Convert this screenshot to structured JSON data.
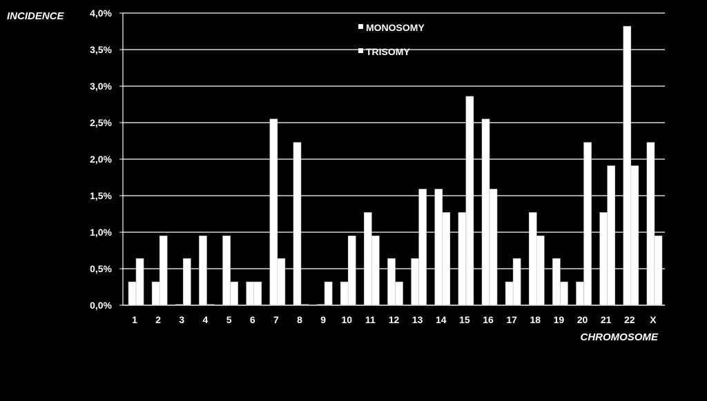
{
  "chart_data": {
    "type": "bar",
    "ylabel": "INCIDENCE",
    "xlabel": "CHROMOSOME",
    "categories": [
      "1",
      "2",
      "3",
      "4",
      "5",
      "6",
      "7",
      "8",
      "9",
      "10",
      "11",
      "12",
      "13",
      "14",
      "15",
      "16",
      "17",
      "18",
      "19",
      "20",
      "21",
      "22",
      "X"
    ],
    "series": [
      {
        "name": "MONOSOMY",
        "values": [
          0.32,
          0.32,
          0.0,
          0.95,
          0.95,
          0.32,
          2.55,
          2.23,
          0.0,
          0.32,
          1.27,
          0.64,
          0.64,
          1.59,
          1.27,
          2.55,
          0.32,
          1.27,
          0.64,
          0.32,
          1.27,
          3.82,
          2.23
        ]
      },
      {
        "name": "TRISOMY",
        "values": [
          0.64,
          0.95,
          0.64,
          0.0,
          0.32,
          0.32,
          0.64,
          0.0,
          0.32,
          0.95,
          0.95,
          0.32,
          1.59,
          1.27,
          2.86,
          1.59,
          0.64,
          0.95,
          0.32,
          2.23,
          1.91,
          1.91,
          0.95
        ]
      }
    ],
    "ylim": [
      0,
      4.0
    ],
    "yticks": [
      "0,0%",
      "0,5%",
      "1,0%",
      "1,5%",
      "2,0%",
      "2,5%",
      "3,0%",
      "3,5%",
      "4,0%"
    ],
    "grid": true,
    "legend_position": "top-center",
    "colors": {
      "background": "#000000",
      "bars": "#ffffff",
      "grid": "#ffffff"
    }
  }
}
